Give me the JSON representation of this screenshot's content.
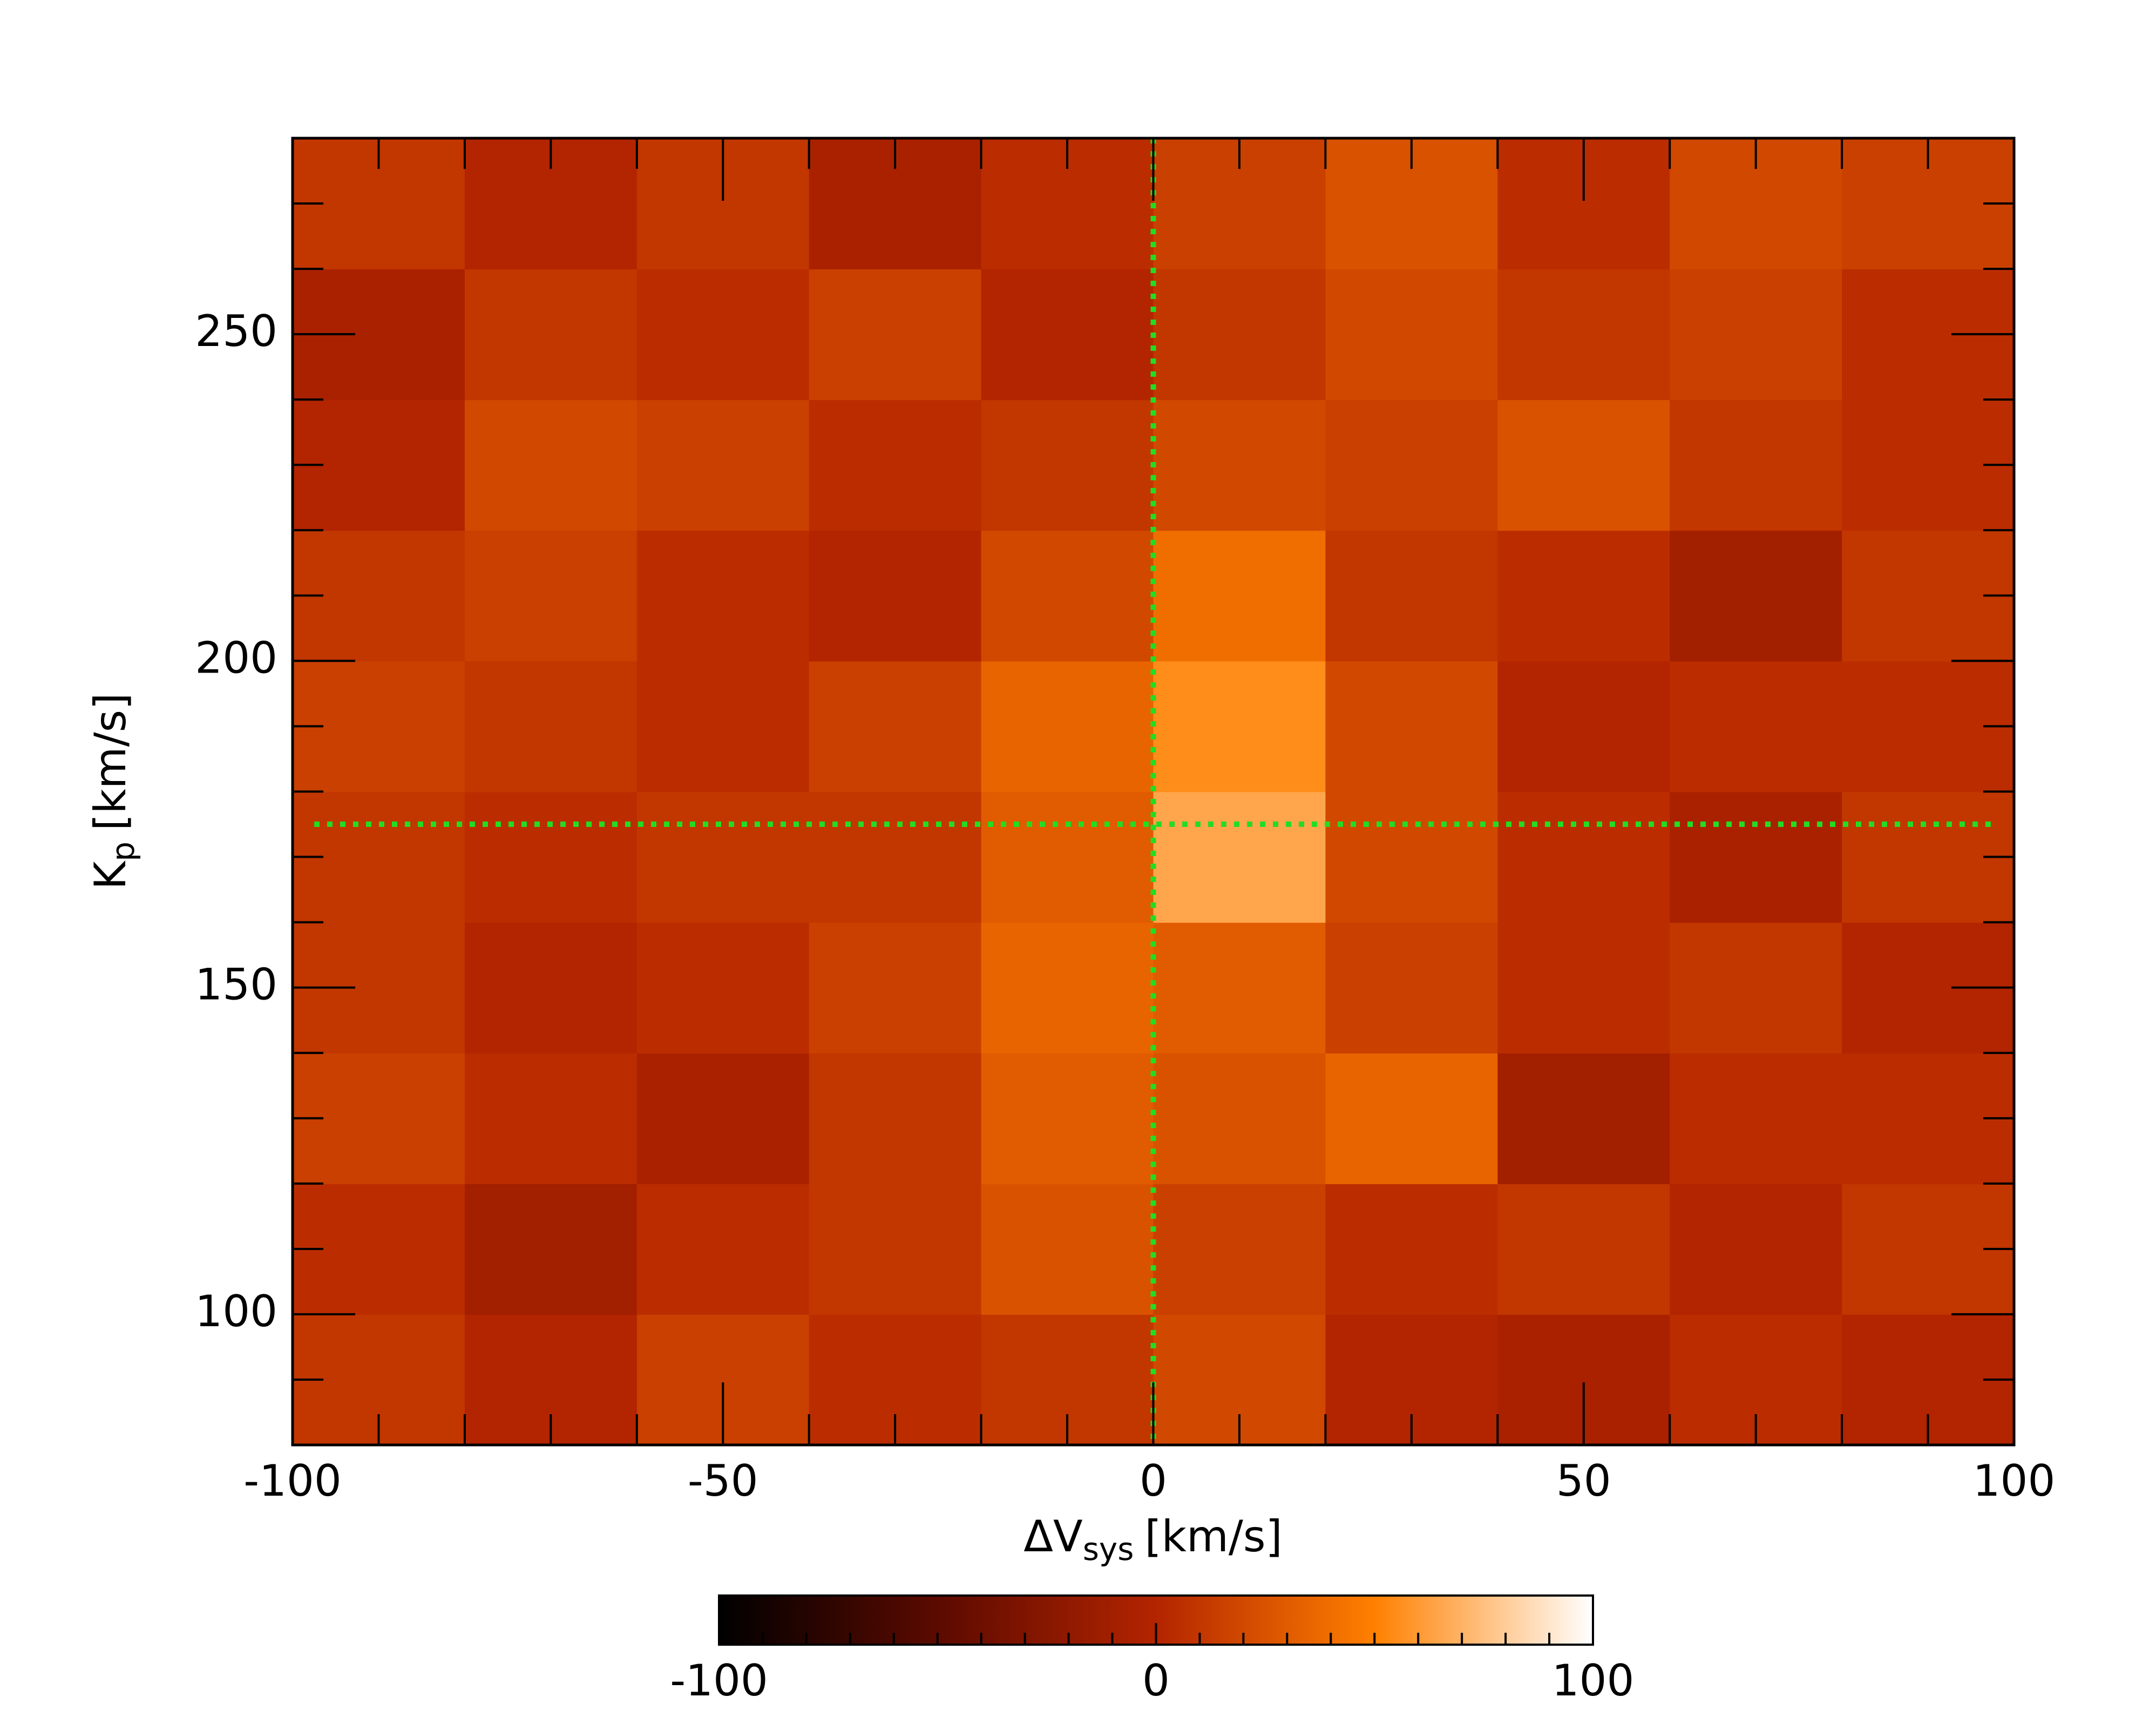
{
  "chart_data": {
    "type": "heatmap",
    "xlabel": "ΔV",
    "xlabel_sub": "sys",
    "xlabel_unit": "[km/s]",
    "ylabel": "K",
    "ylabel_sub": "p",
    "ylabel_unit": "[km/s]",
    "xlim": [
      -100,
      100
    ],
    "xticks": [
      -100,
      -50,
      0,
      50,
      100
    ],
    "xminorticks": [
      -90,
      -80,
      -70,
      -60,
      -40,
      -30,
      -20,
      -10,
      10,
      20,
      30,
      40,
      60,
      70,
      80,
      90
    ],
    "ylim": [
      80,
      280
    ],
    "yticks": [
      100,
      150,
      200,
      250
    ],
    "yminorticks": [
      90,
      110,
      120,
      130,
      140,
      160,
      170,
      180,
      190,
      210,
      220,
      230,
      240,
      260,
      270
    ],
    "x": [
      -90,
      -70,
      -50,
      -30,
      -10,
      10,
      30,
      50,
      70,
      90
    ],
    "y": [
      90,
      110,
      130,
      150,
      170,
      190,
      210,
      230,
      250,
      270
    ],
    "z": [
      [
        10,
        0,
        15,
        5,
        10,
        20,
        0,
        -5,
        5,
        0
      ],
      [
        5,
        -10,
        5,
        10,
        25,
        15,
        5,
        10,
        0,
        10
      ],
      [
        15,
        5,
        -5,
        10,
        30,
        25,
        35,
        -10,
        5,
        5
      ],
      [
        10,
        0,
        5,
        15,
        35,
        30,
        15,
        5,
        10,
        0
      ],
      [
        10,
        5,
        10,
        10,
        30,
        65,
        20,
        5,
        -5,
        10
      ],
      [
        15,
        10,
        5,
        15,
        35,
        55,
        20,
        0,
        5,
        5
      ],
      [
        10,
        15,
        5,
        0,
        20,
        40,
        10,
        5,
        -10,
        10
      ],
      [
        0,
        20,
        15,
        5,
        10,
        20,
        15,
        25,
        10,
        5
      ],
      [
        -5,
        10,
        5,
        15,
        0,
        10,
        20,
        10,
        15,
        5
      ],
      [
        10,
        0,
        10,
        -5,
        5,
        15,
        25,
        5,
        20,
        15
      ]
    ],
    "colorscale": [
      "#000000",
      "#5c0a00",
      "#b32400",
      "#ff8000",
      "#ffffff"
    ],
    "clim": [
      -100,
      100
    ],
    "cticks": [
      -100,
      0,
      100
    ],
    "cminorticks": [
      -90,
      -80,
      -70,
      -60,
      -50,
      -40,
      -30,
      -20,
      -10,
      10,
      20,
      30,
      40,
      50,
      60,
      70,
      80,
      90
    ],
    "reference_lines": {
      "x": 0,
      "y": 175,
      "color": "#22dd22"
    }
  }
}
